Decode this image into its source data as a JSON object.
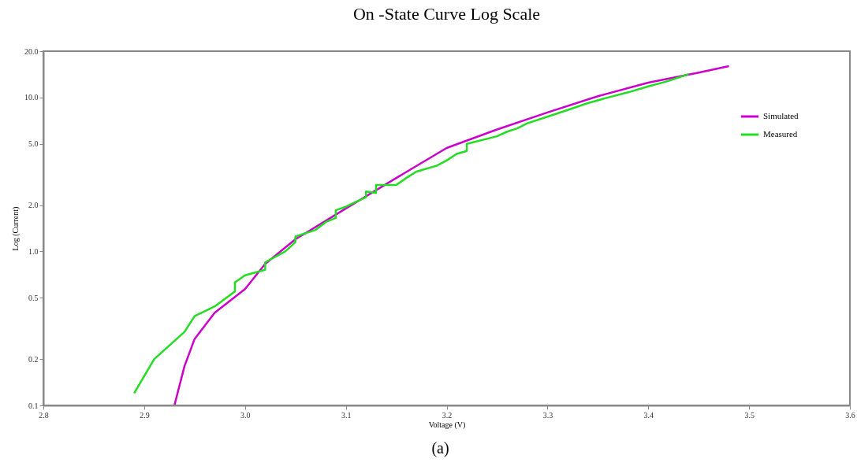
{
  "chart_data": {
    "type": "line",
    "title": "On -State Curve Log Scale",
    "xlabel": "Voltage (V)",
    "ylabel": "Log (Current)",
    "annotations": [
      "(a)"
    ],
    "log": "y",
    "grid": false,
    "legend": "top right",
    "marker": "none",
    "line_style": "solid",
    "xlim": [
      2.8,
      3.6
    ],
    "xticks": [
      2.8,
      2.9,
      {
        "value": 3.0,
        "label": "3.0"
      },
      3.1,
      3.2,
      3.3,
      3.4,
      3.5,
      3.6
    ],
    "ylim": [
      0.1,
      20
    ],
    "yticks": [
      0.1,
      0.2,
      0.5,
      {
        "value": 1,
        "label": "1.0"
      },
      {
        "value": 2,
        "label": "2.0"
      },
      {
        "value": 5,
        "label": "5.0"
      },
      {
        "value": 10,
        "label": "10.0"
      },
      {
        "value": 20,
        "label": "20.0"
      }
    ],
    "series": [
      {
        "name": "Simulated",
        "color": "#cc00cc",
        "x": [
          2.93,
          2.94,
          2.95,
          2.97,
          3.0,
          3.02,
          3.05,
          3.1,
          3.15,
          3.2,
          3.25,
          3.3,
          3.35,
          3.4,
          3.45,
          3.48
        ],
        "values": [
          0.1,
          0.18,
          0.27,
          0.4,
          0.57,
          0.83,
          1.2,
          1.9,
          3.0,
          4.7,
          6.2,
          8.0,
          10.2,
          12.5,
          14.5,
          16.0
        ]
      },
      {
        "name": "Measured",
        "color": "#22dd22",
        "x": [
          2.89,
          2.91,
          2.94,
          2.95,
          2.97,
          2.99,
          2.99,
          3.0,
          3.02,
          3.02,
          3.04,
          3.05,
          3.05,
          3.07,
          3.08,
          3.09,
          3.09,
          3.1,
          3.11,
          3.12,
          3.12,
          3.13,
          3.13,
          3.15,
          3.16,
          3.17,
          3.19,
          3.2,
          3.21,
          3.22,
          3.22,
          3.25,
          3.26,
          3.27,
          3.28,
          3.3,
          3.32,
          3.34,
          3.36,
          3.38,
          3.4,
          3.42,
          3.44
        ],
        "values": [
          0.12,
          0.2,
          0.3,
          0.38,
          0.44,
          0.55,
          0.63,
          0.7,
          0.76,
          0.85,
          1.0,
          1.15,
          1.25,
          1.38,
          1.55,
          1.65,
          1.85,
          1.95,
          2.1,
          2.25,
          2.45,
          2.4,
          2.7,
          2.7,
          3.0,
          3.3,
          3.6,
          3.9,
          4.3,
          4.5,
          5.0,
          5.6,
          6.0,
          6.3,
          6.8,
          7.5,
          8.3,
          9.2,
          10.0,
          10.8,
          11.8,
          12.8,
          14.2
        ]
      }
    ]
  }
}
